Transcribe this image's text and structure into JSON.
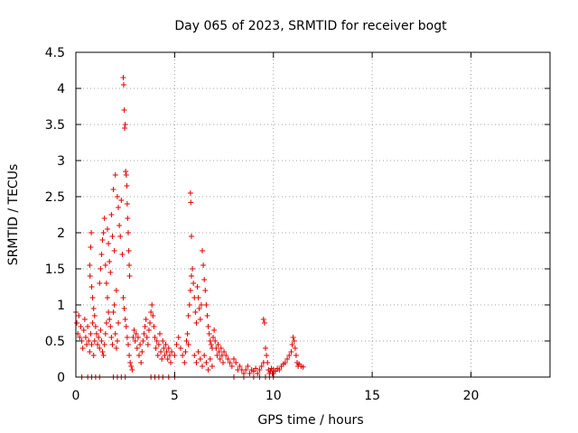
{
  "chart_data": {
    "type": "scatter",
    "title": "Day 065 of 2023, SRMTID for receiver bogt",
    "xlabel": "GPS time / hours",
    "ylabel": "SRMTID / TECUs",
    "xlim": [
      0,
      24
    ],
    "ylim": [
      0,
      4.5
    ],
    "xticks": [
      0,
      5,
      10,
      15,
      20
    ],
    "yticks": [
      0,
      0.5,
      1,
      1.5,
      2,
      2.5,
      3,
      3.5,
      4,
      4.5
    ],
    "xtick_labels": [
      "0",
      "5",
      "10",
      "15",
      "20"
    ],
    "ytick_labels": [
      "0",
      "0.5",
      "1",
      "1.5",
      "2",
      "2.5",
      "3",
      "3.5",
      "4",
      "4.5"
    ],
    "grid": true,
    "marker": "plus",
    "color": "#e00000",
    "series": [
      {
        "name": "SRMTID",
        "points": [
          [
            0.0,
            0.9
          ],
          [
            0.05,
            0.75
          ],
          [
            0.1,
            0.6
          ],
          [
            0.15,
            0.85
          ],
          [
            0.2,
            0.55
          ],
          [
            0.25,
            0.7
          ],
          [
            0.3,
            0.5
          ],
          [
            0.35,
            0.4
          ],
          [
            0.4,
            0.65
          ],
          [
            0.45,
            0.8
          ],
          [
            0.5,
            0.55
          ],
          [
            0.55,
            0.45
          ],
          [
            0.6,
            0.7
          ],
          [
            0.65,
            0.5
          ],
          [
            0.7,
            0.35
          ],
          [
            0.75,
            0.6
          ],
          [
            0.8,
            0.45
          ],
          [
            0.85,
            0.75
          ],
          [
            0.9,
            0.3
          ],
          [
            0.95,
            0.5
          ],
          [
            0.3,
            0.0
          ],
          [
            0.6,
            0.0
          ],
          [
            0.8,
            0.0
          ],
          [
            1.0,
            0.0
          ],
          [
            1.2,
            0.0
          ],
          [
            1.9,
            0.0
          ],
          [
            2.1,
            0.0
          ],
          [
            2.3,
            0.0
          ],
          [
            2.5,
            0.0
          ],
          [
            0.7,
            1.55
          ],
          [
            0.72,
            1.4
          ],
          [
            0.75,
            1.8
          ],
          [
            0.78,
            2.0
          ],
          [
            0.8,
            1.25
          ],
          [
            0.85,
            1.1
          ],
          [
            0.9,
            0.95
          ],
          [
            0.95,
            0.85
          ],
          [
            1.0,
            0.7
          ],
          [
            1.05,
            0.6
          ],
          [
            1.1,
            0.45
          ],
          [
            1.15,
            0.55
          ],
          [
            1.2,
            0.4
          ],
          [
            1.25,
            0.65
          ],
          [
            1.3,
            0.5
          ],
          [
            1.35,
            0.35
          ],
          [
            1.4,
            0.3
          ],
          [
            1.45,
            0.45
          ],
          [
            1.5,
            0.6
          ],
          [
            1.55,
            0.75
          ],
          [
            1.2,
            1.3
          ],
          [
            1.25,
            1.5
          ],
          [
            1.3,
            1.7
          ],
          [
            1.35,
            1.9
          ],
          [
            1.4,
            2.0
          ],
          [
            1.45,
            2.2
          ],
          [
            1.5,
            1.55
          ],
          [
            1.55,
            1.3
          ],
          [
            1.6,
            1.1
          ],
          [
            1.65,
            0.9
          ],
          [
            1.6,
            2.05
          ],
          [
            1.65,
            1.85
          ],
          [
            1.7,
            1.6
          ],
          [
            1.75,
            1.45
          ],
          [
            1.8,
            2.25
          ],
          [
            1.85,
            1.95
          ],
          [
            1.9,
            2.6
          ],
          [
            1.95,
            1.75
          ],
          [
            2.0,
            2.8
          ],
          [
            2.05,
            1.2
          ],
          [
            1.7,
            0.8
          ],
          [
            1.75,
            0.7
          ],
          [
            1.8,
            0.55
          ],
          [
            1.85,
            0.45
          ],
          [
            1.9,
            0.9
          ],
          [
            1.95,
            1.0
          ],
          [
            2.0,
            0.6
          ],
          [
            2.05,
            0.4
          ],
          [
            2.1,
            0.5
          ],
          [
            2.15,
            0.75
          ],
          [
            2.1,
            2.5
          ],
          [
            2.15,
            2.35
          ],
          [
            2.2,
            2.1
          ],
          [
            2.25,
            1.95
          ],
          [
            2.3,
            2.45
          ],
          [
            2.35,
            1.7
          ],
          [
            2.4,
            4.15
          ],
          [
            2.42,
            4.05
          ],
          [
            2.45,
            3.7
          ],
          [
            2.47,
            3.45
          ],
          [
            2.5,
            3.5
          ],
          [
            2.52,
            2.85
          ],
          [
            2.55,
            2.8
          ],
          [
            2.58,
            2.65
          ],
          [
            2.6,
            2.4
          ],
          [
            2.62,
            2.2
          ],
          [
            2.65,
            2.0
          ],
          [
            2.68,
            1.75
          ],
          [
            2.7,
            1.55
          ],
          [
            2.72,
            1.4
          ],
          [
            2.4,
            1.1
          ],
          [
            2.45,
            0.95
          ],
          [
            2.5,
            0.8
          ],
          [
            2.55,
            0.7
          ],
          [
            2.6,
            0.55
          ],
          [
            2.65,
            0.45
          ],
          [
            2.7,
            0.3
          ],
          [
            2.75,
            0.2
          ],
          [
            2.8,
            0.15
          ],
          [
            2.85,
            0.1
          ],
          [
            2.9,
            0.55
          ],
          [
            2.95,
            0.65
          ],
          [
            3.0,
            0.5
          ],
          [
            3.05,
            0.6
          ],
          [
            3.1,
            0.4
          ],
          [
            3.15,
            0.55
          ],
          [
            3.2,
            0.3
          ],
          [
            3.25,
            0.45
          ],
          [
            3.3,
            0.2
          ],
          [
            3.35,
            0.35
          ],
          [
            3.4,
            0.5
          ],
          [
            3.45,
            0.6
          ],
          [
            3.5,
            0.7
          ],
          [
            3.55,
            0.8
          ],
          [
            3.6,
            0.55
          ],
          [
            3.65,
            0.45
          ],
          [
            3.7,
            0.65
          ],
          [
            3.75,
            0.75
          ],
          [
            3.8,
            0.9
          ],
          [
            3.85,
            1.0
          ],
          [
            3.9,
            0.85
          ],
          [
            3.95,
            0.7
          ],
          [
            4.0,
            0.55
          ],
          [
            4.05,
            0.4
          ],
          [
            4.1,
            0.5
          ],
          [
            4.15,
            0.3
          ],
          [
            4.2,
            0.45
          ],
          [
            4.25,
            0.6
          ],
          [
            4.3,
            0.35
          ],
          [
            4.35,
            0.25
          ],
          [
            4.4,
            0.5
          ],
          [
            4.45,
            0.4
          ],
          [
            4.5,
            0.3
          ],
          [
            4.55,
            0.45
          ],
          [
            4.6,
            0.35
          ],
          [
            4.65,
            0.25
          ],
          [
            4.7,
            0.4
          ],
          [
            4.75,
            0.3
          ],
          [
            4.8,
            0.2
          ],
          [
            4.85,
            0.35
          ],
          [
            4.0,
            0.0
          ],
          [
            4.2,
            0.0
          ],
          [
            4.4,
            0.0
          ],
          [
            4.7,
            0.0
          ],
          [
            5.0,
            0.0
          ],
          [
            3.8,
            0.0
          ],
          [
            5.0,
            0.3
          ],
          [
            5.1,
            0.45
          ],
          [
            5.2,
            0.55
          ],
          [
            5.3,
            0.4
          ],
          [
            5.4,
            0.3
          ],
          [
            5.5,
            0.2
          ],
          [
            5.55,
            0.35
          ],
          [
            5.6,
            0.5
          ],
          [
            5.65,
            0.6
          ],
          [
            5.7,
            0.45
          ],
          [
            5.7,
            0.85
          ],
          [
            5.75,
            1.0
          ],
          [
            5.8,
            1.2
          ],
          [
            5.85,
            1.4
          ],
          [
            5.8,
            2.55
          ],
          [
            5.82,
            2.42
          ],
          [
            5.85,
            1.95
          ],
          [
            5.9,
            1.5
          ],
          [
            5.95,
            1.3
          ],
          [
            6.0,
            1.1
          ],
          [
            6.05,
            0.9
          ],
          [
            6.1,
            0.75
          ],
          [
            6.15,
            1.25
          ],
          [
            6.2,
            1.1
          ],
          [
            6.25,
            0.95
          ],
          [
            6.3,
            0.8
          ],
          [
            6.35,
            1.0
          ],
          [
            6.4,
            1.75
          ],
          [
            6.45,
            1.55
          ],
          [
            6.5,
            1.35
          ],
          [
            6.55,
            1.2
          ],
          [
            6.6,
            1.0
          ],
          [
            6.65,
            0.85
          ],
          [
            6.7,
            0.7
          ],
          [
            6.75,
            0.6
          ],
          [
            6.8,
            0.5
          ],
          [
            6.85,
            0.45
          ],
          [
            6.9,
            0.4
          ],
          [
            6.95,
            0.55
          ],
          [
            7.0,
            0.65
          ],
          [
            7.05,
            0.5
          ],
          [
            7.1,
            0.4
          ],
          [
            7.15,
            0.3
          ],
          [
            7.2,
            0.45
          ],
          [
            7.25,
            0.35
          ],
          [
            7.3,
            0.25
          ],
          [
            7.35,
            0.4
          ],
          [
            7.4,
            0.3
          ],
          [
            7.45,
            0.2
          ],
          [
            7.5,
            0.35
          ],
          [
            6.0,
            0.3
          ],
          [
            6.1,
            0.2
          ],
          [
            6.2,
            0.35
          ],
          [
            6.3,
            0.25
          ],
          [
            6.4,
            0.15
          ],
          [
            6.5,
            0.3
          ],
          [
            6.6,
            0.2
          ],
          [
            6.7,
            0.1
          ],
          [
            6.8,
            0.25
          ],
          [
            6.9,
            0.15
          ],
          [
            7.6,
            0.3
          ],
          [
            7.7,
            0.25
          ],
          [
            7.8,
            0.2
          ],
          [
            7.9,
            0.15
          ],
          [
            8.0,
            0.25
          ],
          [
            8.1,
            0.2
          ],
          [
            8.2,
            0.1
          ],
          [
            8.3,
            0.15
          ],
          [
            8.4,
            0.1
          ],
          [
            8.5,
            0.05
          ],
          [
            8.6,
            0.1
          ],
          [
            8.7,
            0.15
          ],
          [
            8.8,
            0.05
          ],
          [
            8.9,
            0.1
          ],
          [
            9.0,
            0.08
          ],
          [
            9.1,
            0.12
          ],
          [
            9.2,
            0.05
          ],
          [
            9.3,
            0.1
          ],
          [
            9.4,
            0.15
          ],
          [
            9.5,
            0.2
          ],
          [
            9.5,
            0.8
          ],
          [
            9.55,
            0.75
          ],
          [
            9.6,
            0.4
          ],
          [
            9.65,
            0.3
          ],
          [
            9.7,
            0.2
          ],
          [
            9.75,
            0.1
          ],
          [
            9.8,
            0.05
          ],
          [
            9.85,
            0.08
          ],
          [
            9.9,
            0.12
          ],
          [
            9.95,
            0.05
          ],
          [
            10.0,
            0.1
          ],
          [
            10.1,
            0.08
          ],
          [
            10.2,
            0.12
          ],
          [
            10.3,
            0.1
          ],
          [
            10.4,
            0.15
          ],
          [
            10.5,
            0.18
          ],
          [
            10.6,
            0.2
          ],
          [
            10.7,
            0.25
          ],
          [
            10.8,
            0.3
          ],
          [
            10.9,
            0.35
          ],
          [
            10.95,
            0.45
          ],
          [
            11.0,
            0.55
          ],
          [
            11.05,
            0.5
          ],
          [
            11.1,
            0.4
          ],
          [
            11.15,
            0.3
          ],
          [
            11.2,
            0.2
          ],
          [
            11.25,
            0.15
          ],
          [
            11.3,
            0.18
          ],
          [
            11.4,
            0.15
          ],
          [
            11.5,
            0.14
          ],
          [
            8.0,
            0.0
          ],
          [
            8.5,
            0.0
          ],
          [
            9.0,
            0.0
          ],
          [
            9.3,
            0.0
          ],
          [
            9.6,
            0.0
          ],
          [
            10.0,
            0.0
          ],
          [
            9.8,
            0.0
          ]
        ]
      }
    ]
  }
}
